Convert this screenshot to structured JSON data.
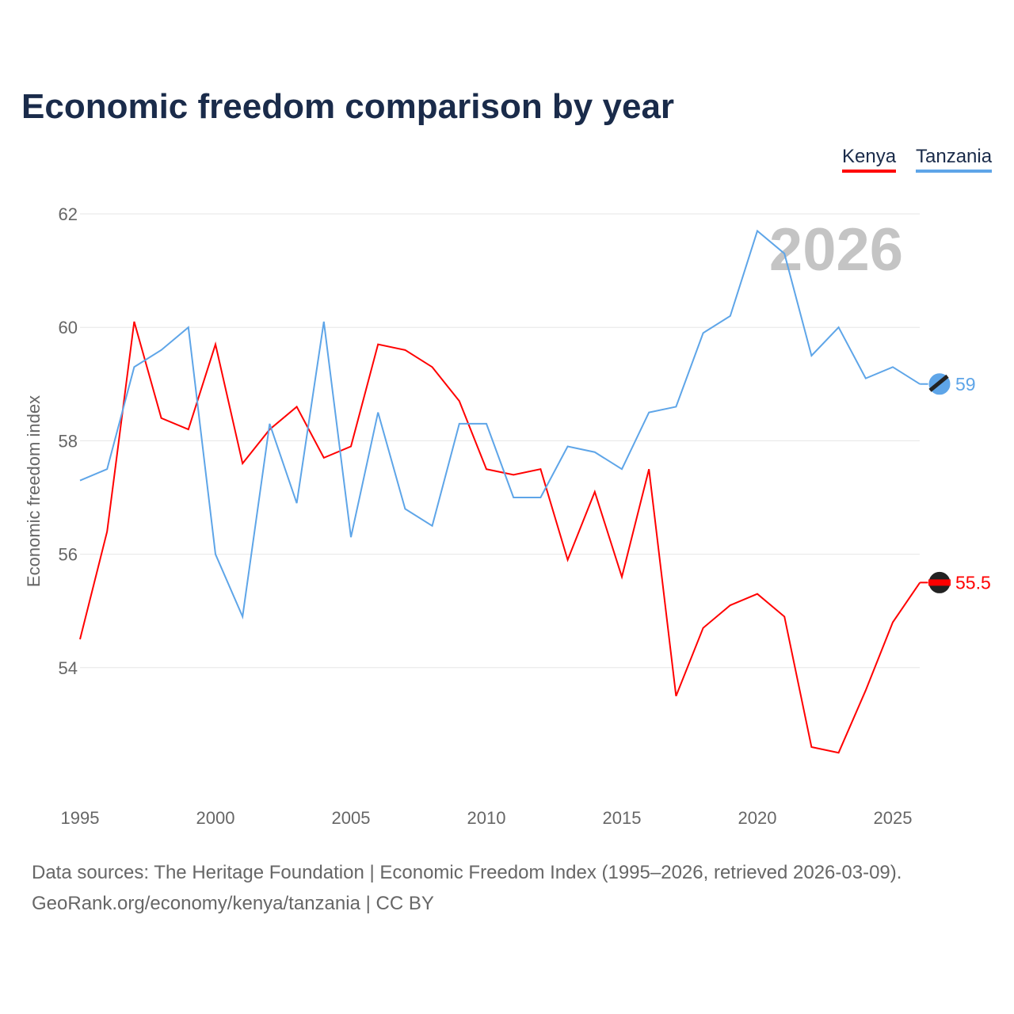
{
  "chart_data": {
    "type": "line",
    "title": "Economic freedom comparison by year",
    "xlabel": "",
    "ylabel": "Economic freedom index",
    "year_watermark": "2026",
    "x": [
      1995,
      1996,
      1997,
      1998,
      1999,
      2000,
      2001,
      2002,
      2003,
      2004,
      2005,
      2006,
      2007,
      2008,
      2009,
      2010,
      2011,
      2012,
      2013,
      2014,
      2015,
      2016,
      2017,
      2018,
      2019,
      2020,
      2021,
      2022,
      2023,
      2024,
      2025,
      2026
    ],
    "xticks": [
      "1995",
      "2000",
      "2005",
      "2010",
      "2015",
      "2020",
      "2025"
    ],
    "yticks": [
      "54",
      "56",
      "58",
      "60",
      "62"
    ],
    "ylim": [
      51.8,
      62.5
    ],
    "grid": true,
    "legend_position": "top-right",
    "series": [
      {
        "name": "Kenya",
        "color": "#ff0000",
        "end_label": "55.5",
        "values": [
          54.5,
          56.4,
          60.1,
          58.4,
          58.2,
          59.7,
          57.6,
          58.2,
          58.6,
          57.7,
          57.9,
          59.7,
          59.6,
          59.3,
          58.7,
          57.5,
          57.4,
          57.5,
          55.9,
          57.1,
          55.6,
          57.5,
          53.5,
          54.7,
          55.1,
          55.3,
          54.9,
          52.6,
          52.5,
          53.6,
          54.8,
          55.5
        ]
      },
      {
        "name": "Tanzania",
        "color": "#5ea5e8",
        "end_label": "59",
        "values": [
          57.3,
          57.5,
          59.3,
          59.6,
          60.0,
          56.0,
          54.9,
          58.3,
          56.9,
          60.1,
          56.3,
          58.5,
          56.8,
          56.5,
          58.3,
          58.3,
          57.0,
          57.0,
          57.9,
          57.8,
          57.5,
          58.5,
          58.6,
          59.9,
          60.2,
          61.7,
          61.3,
          59.5,
          60.0,
          59.1,
          59.3,
          59.0
        ]
      }
    ]
  },
  "footer": {
    "line1": "Data sources: The Heritage Foundation | Economic Freedom Index (1995–2026, retrieved 2026-03-09).",
    "line2": "GeoRank.org/economy/kenya/tanzania | CC BY"
  }
}
